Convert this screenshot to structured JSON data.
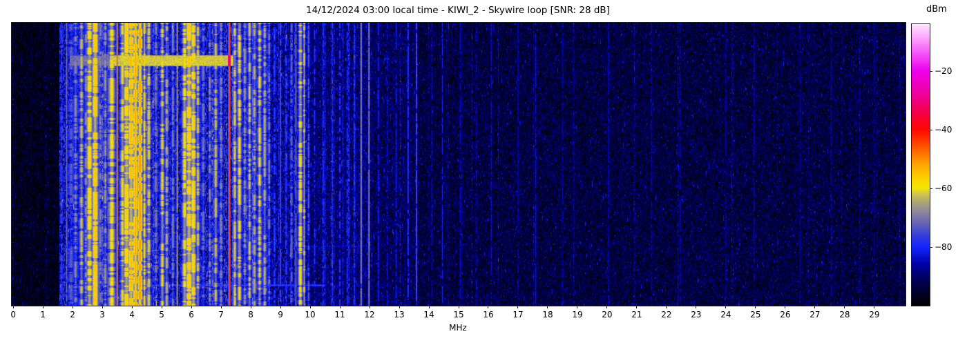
{
  "chart_data": {
    "type": "heatmap",
    "title": "14/12/2024 03:00 local time - KIWI_2 - Skywire loop [SNR: 28 dB]",
    "meta": {
      "datetime": "14/12/2024 03:00",
      "time_note": "local time",
      "receiver": "KIWI_2",
      "antenna": "Skywire loop",
      "snr": "28 dB"
    },
    "xlabel": "MHz",
    "xlim": [
      -0.05,
      30.05
    ],
    "x_ticks": [
      0,
      1,
      2,
      3,
      4,
      5,
      6,
      7,
      8,
      9,
      10,
      11,
      12,
      13,
      14,
      15,
      16,
      17,
      18,
      19,
      20,
      21,
      22,
      23,
      24,
      25,
      26,
      27,
      28,
      29
    ],
    "grid": false,
    "legend": "none",
    "colorbar": {
      "label": "dBm",
      "clim": [
        -100,
        -4
      ],
      "ticks": [
        {
          "value": -20,
          "label": "−20"
        },
        {
          "value": -40,
          "label": "−40"
        },
        {
          "value": -60,
          "label": "−60"
        },
        {
          "value": -80,
          "label": "−80"
        }
      ],
      "colormap": [
        {
          "dbm": -100,
          "color": "#000000"
        },
        {
          "dbm": -92,
          "color": "#000050"
        },
        {
          "dbm": -86,
          "color": "#0000a8"
        },
        {
          "dbm": -80,
          "color": "#1428ff"
        },
        {
          "dbm": -76,
          "color": "#3840d8"
        },
        {
          "dbm": -72,
          "color": "#6864b4"
        },
        {
          "dbm": -68,
          "color": "#8e889c"
        },
        {
          "dbm": -65,
          "color": "#aca578"
        },
        {
          "dbm": -62,
          "color": "#d0c44c"
        },
        {
          "dbm": -60,
          "color": "#f4e800"
        },
        {
          "dbm": -57,
          "color": "#ffd400"
        },
        {
          "dbm": -52,
          "color": "#ffa800"
        },
        {
          "dbm": -46,
          "color": "#ff5500"
        },
        {
          "dbm": -40,
          "color": "#ff0800"
        },
        {
          "dbm": -34,
          "color": "#f4004c"
        },
        {
          "dbm": -27,
          "color": "#ef00a8"
        },
        {
          "dbm": -20,
          "color": "#ee00ee"
        },
        {
          "dbm": -14,
          "color": "#f655fa"
        },
        {
          "dbm": -8,
          "color": "#fcaefe"
        },
        {
          "dbm": -4,
          "color": "#ffe4ff"
        }
      ]
    },
    "noise_regions": {
      "format": [
        "from_mhz",
        "to_mhz",
        "mean_dbm",
        "spread_db",
        "line_prob",
        "line_boost_db"
      ],
      "rows": [
        [
          0.0,
          1.55,
          -98,
          7,
          0.03,
          4
        ],
        [
          1.55,
          8.65,
          -85,
          11,
          0.15,
          6
        ],
        [
          8.65,
          9.95,
          -88,
          9,
          0.1,
          7
        ],
        [
          9.95,
          12.1,
          -90,
          7,
          0.11,
          8
        ],
        [
          12.1,
          13.65,
          -92,
          7,
          0.05,
          6
        ],
        [
          13.65,
          30.05,
          -94,
          6,
          0.03,
          5
        ]
      ]
    },
    "signal_bands": {
      "format": [
        "center_mhz",
        "sigma_mhz",
        "peak_dbm",
        "duty"
      ],
      "rows": [
        [
          1.62,
          0.04,
          -78,
          0.5
        ],
        [
          1.8,
          0.015,
          -70,
          0.9
        ],
        [
          1.95,
          0.06,
          -73,
          0.5
        ],
        [
          2.1,
          0.05,
          -68,
          0.5
        ],
        [
          2.3,
          0.05,
          -62,
          0.5
        ],
        [
          2.45,
          0.04,
          -67,
          0.5
        ],
        [
          2.57,
          0.08,
          -57,
          0.65
        ],
        [
          2.76,
          0.08,
          -55,
          0.7
        ],
        [
          2.93,
          0.04,
          -69,
          0.5
        ],
        [
          3.1,
          0.04,
          -66,
          0.5
        ],
        [
          3.32,
          0.08,
          -58,
          0.6
        ],
        [
          3.5,
          0.016,
          -40,
          1
        ],
        [
          3.68,
          0.06,
          -60,
          0.6
        ],
        [
          3.82,
          0.08,
          -56,
          0.65
        ],
        [
          3.97,
          0.08,
          -54,
          0.7
        ],
        [
          4.12,
          0.07,
          -52,
          0.7
        ],
        [
          4.27,
          0.06,
          -50,
          0.7
        ],
        [
          4.42,
          0.035,
          -56,
          0.6
        ],
        [
          4.57,
          0.045,
          -60,
          0.55
        ],
        [
          4.8,
          0.04,
          -70,
          0.5
        ],
        [
          5.02,
          0.05,
          -60,
          0.5
        ],
        [
          5.17,
          0.04,
          -63,
          0.5
        ],
        [
          5.38,
          0.03,
          -68,
          0.6
        ],
        [
          5.52,
          0.018,
          -66,
          0.9
        ],
        [
          5.77,
          0.06,
          -58,
          0.6
        ],
        [
          5.92,
          0.08,
          -55,
          0.65
        ],
        [
          6.07,
          0.07,
          -56,
          0.65
        ],
        [
          6.22,
          0.045,
          -61,
          0.55
        ],
        [
          6.4,
          0.04,
          -70,
          0.5
        ],
        [
          6.62,
          0.03,
          -66,
          0.5
        ],
        [
          6.82,
          0.045,
          -62,
          0.5
        ],
        [
          7.0,
          0.04,
          -68,
          0.5
        ],
        [
          7.28,
          0.018,
          -37,
          1
        ],
        [
          7.46,
          0.04,
          -61,
          0.55
        ],
        [
          7.62,
          0.05,
          -59,
          0.6
        ],
        [
          7.8,
          0.04,
          -66,
          0.5
        ],
        [
          7.96,
          0.04,
          -61,
          0.55
        ],
        [
          8.12,
          0.04,
          -64,
          0.5
        ],
        [
          8.3,
          0.05,
          -60,
          0.55
        ],
        [
          8.47,
          0.04,
          -63,
          0.5
        ],
        [
          8.62,
          0.03,
          -68,
          0.5
        ],
        [
          8.8,
          0.025,
          -76,
          0.5
        ],
        [
          9.0,
          0.016,
          -72,
          0.85
        ],
        [
          9.2,
          0.025,
          -78,
          0.5
        ],
        [
          9.38,
          0.025,
          -70,
          0.55
        ],
        [
          9.52,
          0.016,
          -68,
          0.85
        ],
        [
          9.67,
          0.06,
          -58,
          0.5
        ],
        [
          9.8,
          0.03,
          -57,
          0.25
        ],
        [
          9.95,
          0.025,
          -72,
          0.5
        ],
        [
          10.15,
          0.02,
          -77,
          0.5
        ],
        [
          10.45,
          0.02,
          -78,
          0.6
        ],
        [
          10.75,
          0.018,
          -79,
          0.6
        ],
        [
          11.0,
          0.02,
          -76,
          0.6
        ],
        [
          11.25,
          0.018,
          -77,
          0.6
        ],
        [
          11.5,
          0.018,
          -78,
          0.6
        ],
        [
          11.72,
          0.02,
          -67,
          0.95
        ],
        [
          11.98,
          0.018,
          -66,
          0.95
        ],
        [
          12.3,
          0.018,
          -80,
          0.6
        ],
        [
          12.6,
          0.016,
          -82,
          0.6
        ],
        [
          12.9,
          0.016,
          -80,
          0.6
        ],
        [
          13.3,
          0.018,
          -76,
          0.8
        ],
        [
          13.58,
          0.016,
          -72,
          0.9
        ],
        [
          14.1,
          0.016,
          -84,
          0.7
        ],
        [
          14.45,
          0.016,
          -80,
          0.8
        ],
        [
          15.05,
          0.016,
          -83,
          0.7
        ],
        [
          15.6,
          0.016,
          -84,
          0.7
        ],
        [
          16.1,
          0.016,
          -83,
          0.7
        ],
        [
          17.0,
          0.016,
          -84,
          0.7
        ],
        [
          17.6,
          0.016,
          -82,
          0.8
        ],
        [
          18.5,
          0.016,
          -85,
          0.7
        ],
        [
          20.05,
          0.016,
          -83,
          0.8
        ],
        [
          21.5,
          0.016,
          -85,
          0.7
        ],
        [
          22.45,
          0.016,
          -84,
          0.7
        ],
        [
          24.0,
          0.016,
          -85,
          0.7
        ],
        [
          24.95,
          0.016,
          -84,
          0.7
        ],
        [
          26.5,
          0.016,
          -86,
          0.7
        ],
        [
          27.55,
          0.016,
          -85,
          0.7
        ],
        [
          29.0,
          0.016,
          -86,
          0.7
        ]
      ]
    },
    "horizontal_events": [
      {
        "name": "broadband-burst",
        "row_frac": [
          0.115,
          0.153
        ],
        "mhz": [
          1.9,
          7.45
        ],
        "segments": [
          {
            "mhz": [
              1.9,
              3.25
            ],
            "dbm": -71
          },
          {
            "mhz": [
              3.25,
              7.42
            ],
            "dbm": -62
          }
        ],
        "hotspot": {
          "mhz": [
            7.24,
            7.33
          ],
          "dbm": -30
        }
      },
      {
        "name": "faint-sweep-line-low",
        "row_frac": [
          0.925,
          0.932
        ],
        "mhz": [
          2.3,
          10.5
        ],
        "segments": [
          {
            "mhz": [
              2.3,
              10.5
            ],
            "dbm": -76
          }
        ]
      },
      {
        "name": "faint-sweep-line-mid",
        "row_frac": [
          0.788,
          0.793
        ],
        "mhz": [
          6.6,
          12.0
        ],
        "segments": [
          {
            "mhz": [
              6.6,
              12.0
            ],
            "dbm": -80
          }
        ]
      }
    ],
    "render_seed": 1214
  }
}
